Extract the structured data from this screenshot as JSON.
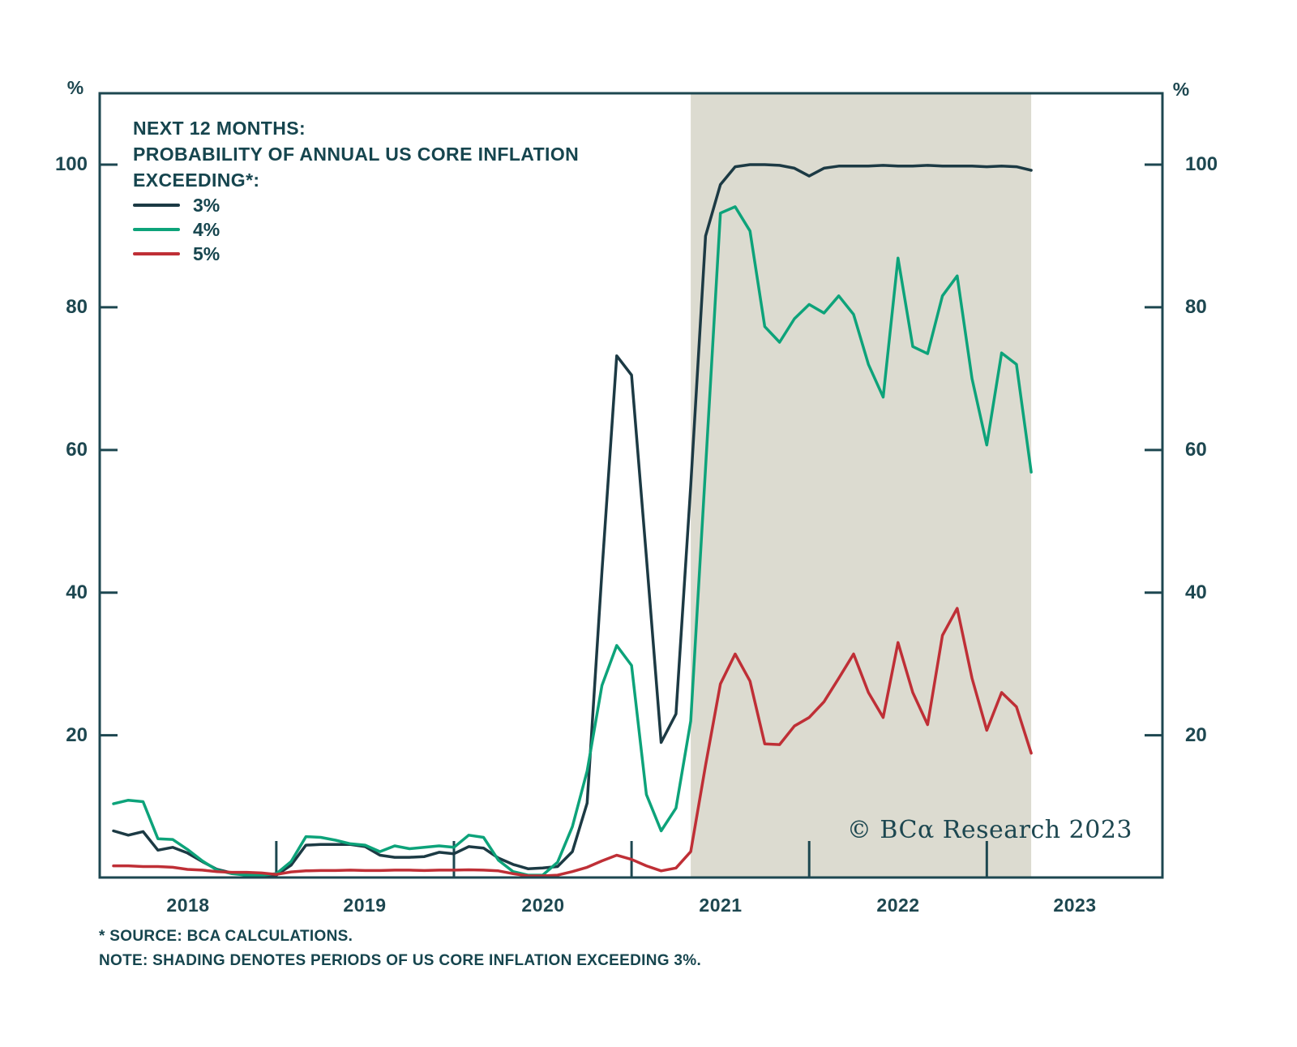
{
  "chart_data": {
    "type": "line",
    "title_lines": [
      "NEXT 12 MONTHS:",
      "PROBABILITY OF ANNUAL US CORE INFLATION",
      "EXCEEDING*:"
    ],
    "unit": "%",
    "x_axis": {
      "year_labels": [
        "2018",
        "2019",
        "2020",
        "2021",
        "2022",
        "2023"
      ],
      "start_month": "2018-02",
      "months_per_point": 1
    },
    "y_axis": {
      "ticks": [
        "100",
        "80",
        "60",
        "40",
        "20"
      ],
      "tick_values": [
        100,
        80,
        60,
        40,
        20
      ],
      "ylim": [
        0,
        110
      ],
      "unit": "%"
    },
    "grid": "off",
    "legend_position": "top-left",
    "series": [
      {
        "name": "3%",
        "color": "#1c3a44",
        "values": [
          6.6,
          6.0,
          6.5,
          3.9,
          4.3,
          3.5,
          2.3,
          1.2,
          0.7,
          0.5,
          0.4,
          0.4,
          1.8,
          4.6,
          4.7,
          4.7,
          4.7,
          4.4,
          3.2,
          2.9,
          2.9,
          3.0,
          3.6,
          3.4,
          4.4,
          4.2,
          2.8,
          1.9,
          1.3,
          1.4,
          1.6,
          3.7,
          10.5,
          43,
          73.2,
          70.5,
          45,
          19,
          23,
          55,
          90,
          97.2,
          99.7,
          100,
          100,
          99.9,
          99.5,
          98.4,
          99.5,
          99.8,
          99.8,
          99.8,
          99.9,
          99.8,
          99.8,
          99.9,
          99.8,
          99.8,
          99.8,
          99.7,
          99.8,
          99.7,
          99.2
        ]
      },
      {
        "name": "4%",
        "color": "#0da37a",
        "values": [
          10.4,
          10.9,
          10.7,
          5.5,
          5.4,
          4.0,
          2.4,
          1.1,
          0.6,
          0.4,
          0.4,
          0.6,
          2.3,
          5.8,
          5.7,
          5.3,
          4.8,
          4.6,
          3.7,
          4.5,
          4.1,
          4.3,
          4.5,
          4.3,
          6.0,
          5.7,
          2.5,
          0.9,
          0.4,
          0.4,
          2.2,
          7.2,
          15,
          27,
          32.6,
          29.8,
          11.7,
          6.6,
          9.8,
          22,
          57.5,
          93.2,
          94.1,
          90.7,
          77.3,
          75.1,
          78.4,
          80.4,
          79.2,
          81.6,
          79,
          72,
          67.4,
          86.9,
          74.5,
          73.5,
          81.6,
          84.4,
          70,
          60.7,
          73.6,
          72,
          56.9
        ]
      },
      {
        "name": "5%",
        "color": "#bf2f36",
        "values": [
          1.7,
          1.7,
          1.6,
          1.6,
          1.5,
          1.2,
          1.1,
          0.9,
          0.8,
          0.8,
          0.7,
          0.5,
          0.85,
          1.0,
          1.05,
          1.05,
          1.1,
          1.05,
          1.05,
          1.1,
          1.1,
          1.05,
          1.1,
          1.1,
          1.15,
          1.1,
          1.0,
          0.6,
          0.3,
          0.3,
          0.4,
          0.9,
          1.5,
          2.4,
          3.2,
          2.6,
          1.7,
          1.0,
          1.4,
          3.7,
          15.8,
          27.2,
          31.4,
          27.6,
          18.8,
          18.7,
          21.3,
          22.5,
          24.7,
          28,
          31.4,
          26,
          22.5,
          33,
          26,
          21.5,
          34,
          37.8,
          28,
          20.7,
          26,
          24,
          17.5
        ]
      }
    ],
    "shading": {
      "color": "#dcdbd0",
      "start_index": 39,
      "end_index": 62
    }
  },
  "watermark": {
    "text": "© BCα Research 2023"
  },
  "footer": {
    "source_note": "* SOURCE: BCA CALCULATIONS.",
    "shading_note": "NOTE: SHADING DENOTES PERIODS OF US CORE INFLATION EXCEEDING 3%."
  }
}
